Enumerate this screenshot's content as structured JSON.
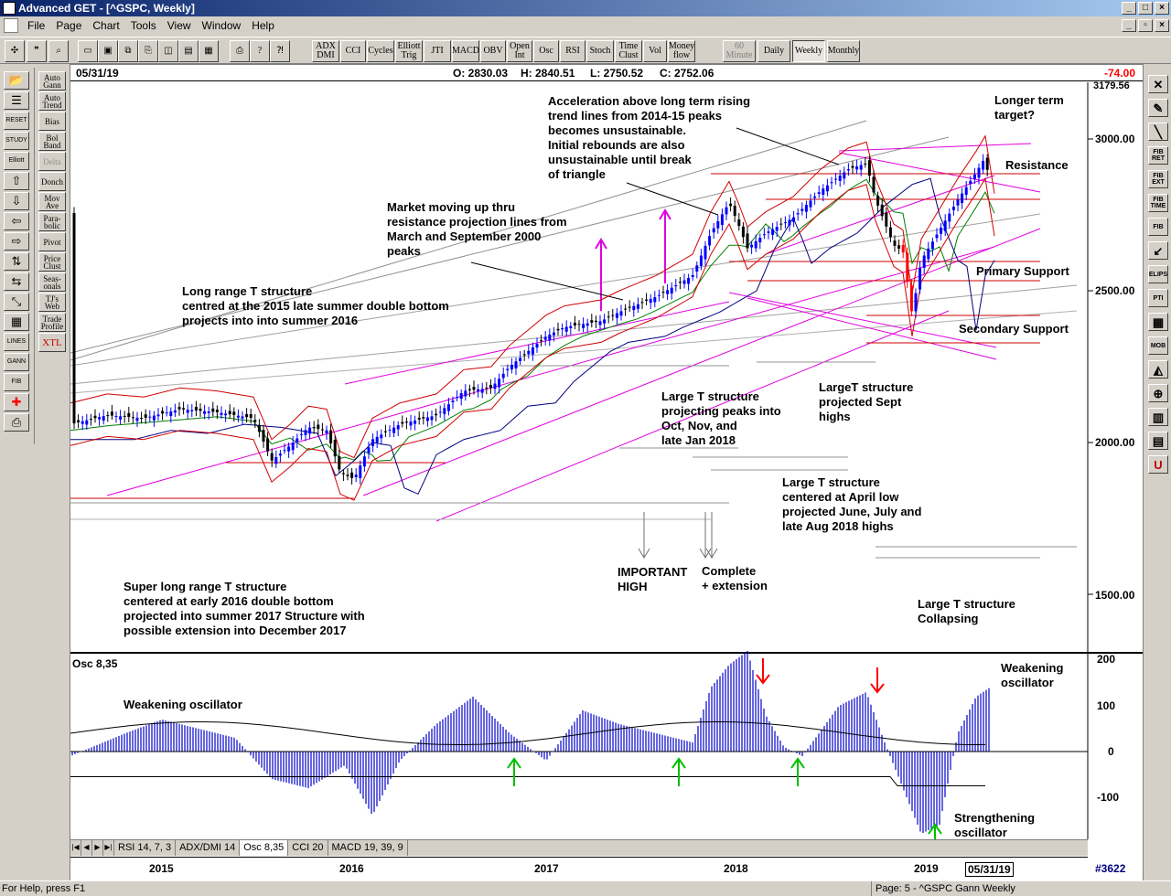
{
  "window": {
    "title": "Advanced GET - [^GSPC, Weekly]"
  },
  "menu": [
    "File",
    "Page",
    "Chart",
    "Tools",
    "View",
    "Window",
    "Help"
  ],
  "toolbar": {
    "indicators": [
      "ADX\nDMI",
      "CCI",
      "Cycles",
      "Elliott\nTrig",
      "JTI",
      "MACD",
      "OBV",
      "Open\nInt",
      "Osc",
      "RSI",
      "Stoch",
      "Time\nClust",
      "Vol",
      "Money\nflow"
    ],
    "periods": [
      "60\nMinute",
      "Daily",
      "Weekly",
      "Monthly"
    ],
    "selected_period": "Weekly"
  },
  "left_tools": {
    "col1": [
      "open-icon",
      "crowd-icon",
      "RESET",
      "STUDY",
      "Elliott",
      "up-arrow-icon",
      "down-arrow-icon",
      "left-arrow-icon",
      "right-arrow-icon",
      "up-down-icon",
      "left-right-icon",
      "shrink-icon",
      "grid-icon",
      "LINES",
      "GANN",
      "FIB",
      "crosshair-icon",
      "print-icon"
    ],
    "col2": [
      "Auto\nGann",
      "Auto\nTrend",
      "Bias",
      "Bol\nBand",
      "Delta",
      "Donch",
      "Mov\nAve",
      "Para-\nbolic",
      "Pivot",
      "Price\nClust",
      "Seas-\nonals",
      "TJ's\nWeb",
      "Trade\nProfile",
      "XTL"
    ]
  },
  "right_tools": [
    "close-x-icon",
    "pencil-icon",
    "line-icon",
    "FIB RET",
    "FIB EXT",
    "FIB TIME",
    "FIB",
    "arrow-icon",
    "ELIPS",
    "PTI",
    "grid-icon",
    "MOB",
    "triangle-icon",
    "zoom-icon",
    "histogram-icon",
    "page-icon",
    "magnet-icon"
  ],
  "ohlc": {
    "date": "05/31/19",
    "open": "O: 2830.03",
    "high": "H: 2840.51",
    "low": "L: 2750.52",
    "close": "C: 2752.06",
    "change": "-74.00"
  },
  "price_axis": {
    "top_label": "3179.56",
    "labels": [
      "3000.00",
      "2500.00",
      "2000.00",
      "1500.00"
    ]
  },
  "osc_axis": {
    "labels": [
      "200",
      "100",
      "0",
      "-100"
    ]
  },
  "osc_label": "Osc 8,35",
  "annotations": {
    "accel": "Acceleration above long term rising\ntrend lines from 2014-15 peaks\nbecomes unsustainable.\nInitial rebounds are also\nunsustainable until break\nof triangle",
    "longer": "Longer term\ntarget?",
    "resistance": "Resistance",
    "market": "Market moving up thru\nresistance projection lines from\nMarch and September 2000\npeaks",
    "longrange": "Long range T structure\ncentred at the 2015 late summer double bottom\nprojects into into summer 2016",
    "primary": "Primary Support",
    "secondary": "Secondary Support",
    "larget_sept": "LargeT structure\nprojected Sept\nhighs",
    "larget_oct": "Large T structure\nprojecting peaks into\nOct, Nov, and\nlate Jan 2018",
    "larget_april": "Large T structure\ncentered at April low\nprojected June, July and\nlate Aug 2018 highs",
    "important": "IMPORTANT\nHIGH",
    "complete": "Complete\n+ extension",
    "superlong": "Super long range T structure\ncentered at early 2016 double bottom\nprojected into summer 2017 Structure with\npossible extension into December 2017",
    "collapsing": "Large T structure\nCollapsing",
    "weak_left": "Weakening oscillator",
    "weak_right": "Weakening\noscillator",
    "strength": "Strengthening\noscillator"
  },
  "tabs": [
    "RSI 14, 7, 3",
    "ADX/DMI 14",
    "Osc 8,35",
    "CCI 20",
    "MACD 19, 39, 9"
  ],
  "active_tab": "Osc 8,35",
  "time_axis": {
    "years": [
      "2015",
      "2016",
      "2017",
      "2018",
      "2019"
    ],
    "cursor_date": "05/31/19",
    "bar_count": "#3622"
  },
  "status": {
    "left": "For Help, press F1",
    "right": "Page: 5 - ^GSPC Gann Weekly"
  },
  "colors": {
    "up_bar": "#0000ff",
    "down_bar": "#000000",
    "red_bar": "#ff0000",
    "magenta": "#e000e0",
    "green_arrow": "#00c000",
    "red_arrow": "#ff0000",
    "change": "#ff0000"
  }
}
